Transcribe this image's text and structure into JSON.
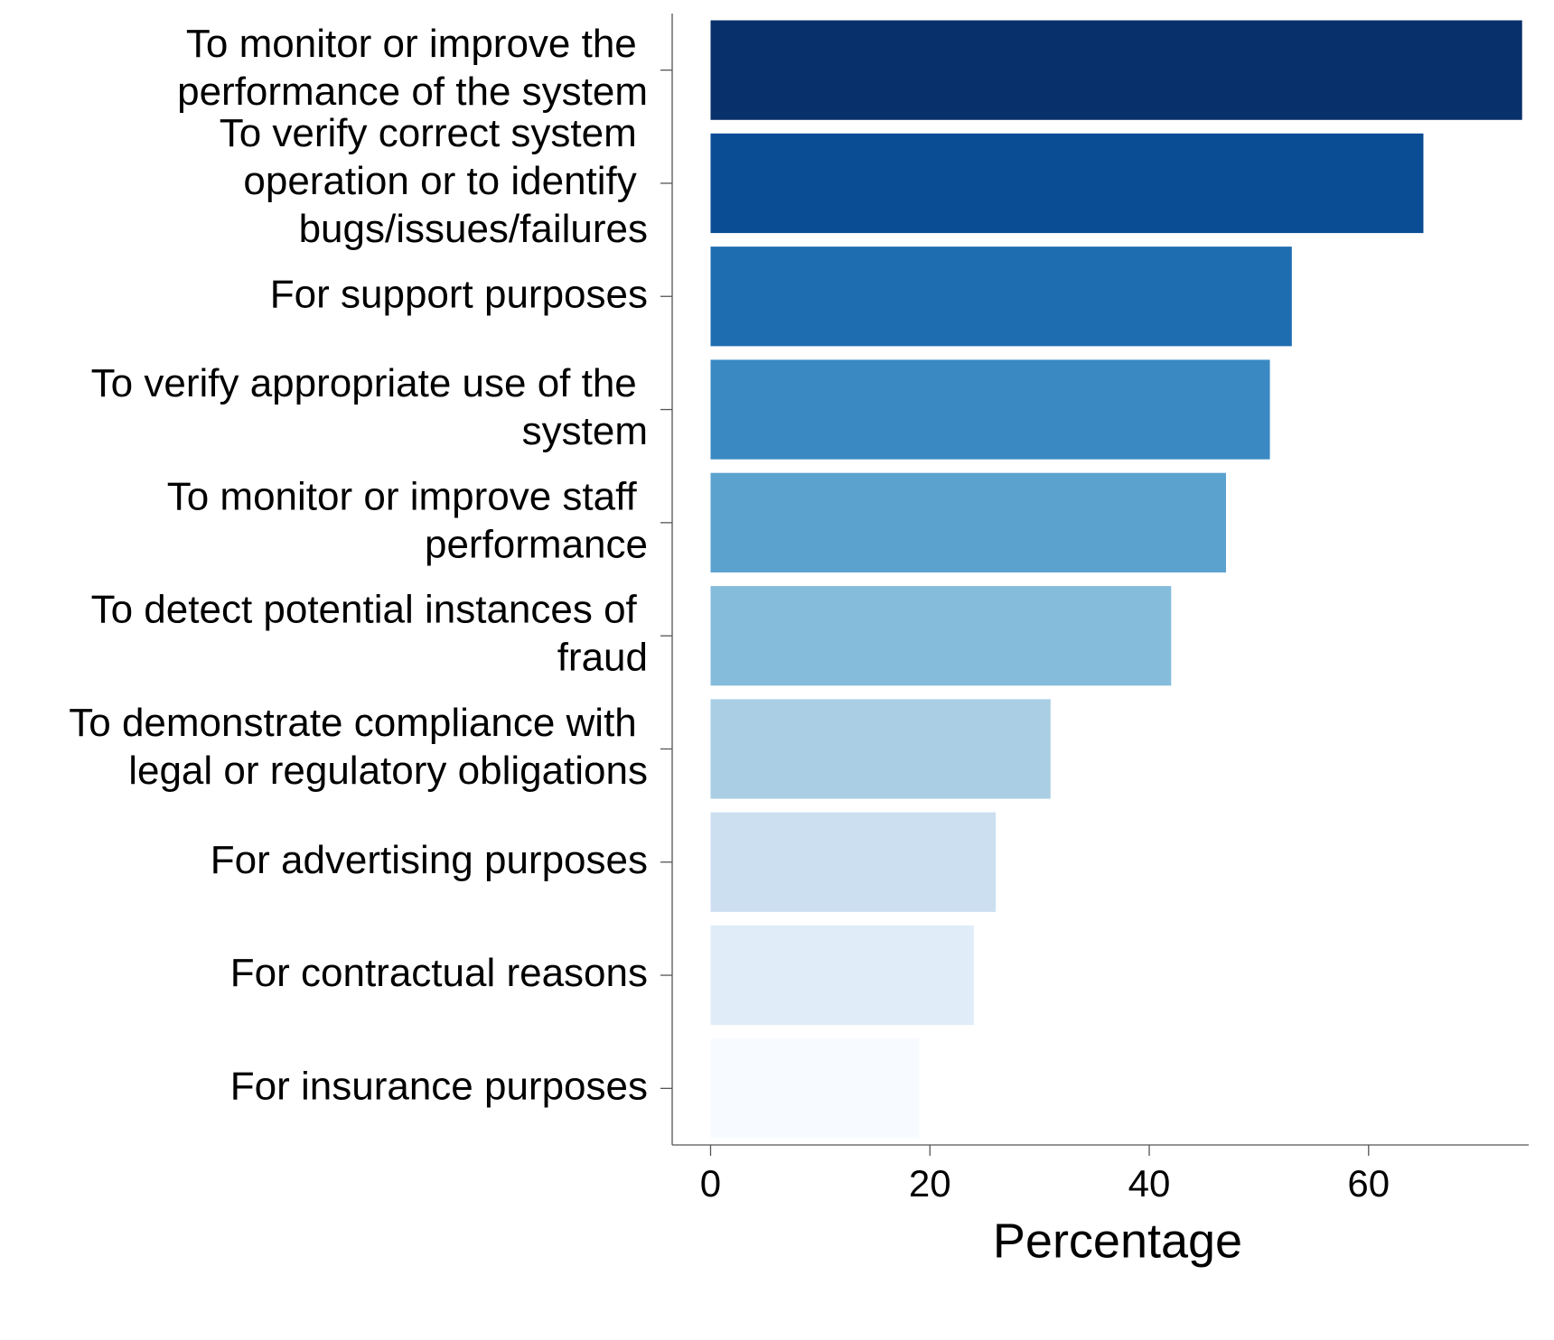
{
  "chart_data": {
    "type": "barh",
    "categories": [
      "To monitor or improve the performance of the system",
      "To verify correct system operation or to identify bugs/issues/failures",
      "For support purposes",
      "To verify appropriate use of the system",
      "To monitor or improve staff performance",
      "To detect potential instances of fraud",
      "To demonstrate compliance with legal or regulatory obligations",
      "For advertising purposes",
      "For contractual reasons",
      "For insurance purposes"
    ],
    "values": [
      74,
      65,
      53,
      51,
      47,
      42,
      31,
      26,
      24,
      19
    ],
    "colors": [
      "#08306b",
      "#0a4d94",
      "#1f6db1",
      "#3a89c3",
      "#5ca2cf",
      "#85bcdc",
      "#aacfe5",
      "#ccdff1",
      "#e0ecf8",
      "#f7fbff"
    ],
    "xlabel": "Percentage",
    "xlim": [
      -3.5,
      74.6
    ],
    "xticks": [
      0,
      20,
      40,
      60
    ],
    "grid": false
  }
}
